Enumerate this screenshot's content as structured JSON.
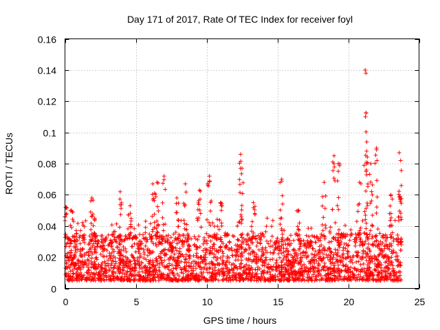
{
  "chart_data": {
    "type": "scatter",
    "title": "Day 171 of 2017, Rate Of TEC Index for receiver foyl",
    "xlabel": "GPS time / hours",
    "ylabel": "ROTI / TECUs",
    "xlim": [
      0,
      25
    ],
    "ylim": [
      0,
      0.16
    ],
    "xticks": [
      0,
      5,
      10,
      15,
      20,
      25
    ],
    "xtick_labels": [
      "0",
      "5",
      "10",
      "15",
      "20",
      "25"
    ],
    "yticks": [
      0,
      0.02,
      0.04,
      0.06,
      0.08,
      0.1,
      0.12,
      0.14,
      0.16
    ],
    "ytick_labels": [
      "0",
      "0.02",
      "0.04",
      "0.06",
      "0.08",
      "0.1",
      "0.12",
      "0.14",
      "0.16"
    ],
    "grid": true,
    "marker": "+",
    "color": "#ff0000",
    "time_range_hours": [
      0,
      23.75
    ],
    "typical_range": [
      0.005,
      0.035
    ],
    "series": [
      {
        "name": "ROTI",
        "peaks": [
          {
            "x": 0.05,
            "y": 0.052
          },
          {
            "x": 0.45,
            "y": 0.05
          },
          {
            "x": 1.9,
            "y": 0.058
          },
          {
            "x": 2.1,
            "y": 0.045
          },
          {
            "x": 3.9,
            "y": 0.062
          },
          {
            "x": 4.6,
            "y": 0.053
          },
          {
            "x": 6.2,
            "y": 0.067
          },
          {
            "x": 6.5,
            "y": 0.068
          },
          {
            "x": 7.0,
            "y": 0.072
          },
          {
            "x": 7.9,
            "y": 0.058
          },
          {
            "x": 8.5,
            "y": 0.067
          },
          {
            "x": 9.5,
            "y": 0.063
          },
          {
            "x": 10.2,
            "y": 0.072
          },
          {
            "x": 11.0,
            "y": 0.055
          },
          {
            "x": 12.4,
            "y": 0.086
          },
          {
            "x": 12.5,
            "y": 0.077
          },
          {
            "x": 13.3,
            "y": 0.055
          },
          {
            "x": 15.3,
            "y": 0.07
          },
          {
            "x": 16.5,
            "y": 0.05
          },
          {
            "x": 18.3,
            "y": 0.068
          },
          {
            "x": 19.0,
            "y": 0.085
          },
          {
            "x": 19.3,
            "y": 0.08
          },
          {
            "x": 20.8,
            "y": 0.068
          },
          {
            "x": 21.2,
            "y": 0.14
          },
          {
            "x": 21.25,
            "y": 0.138
          },
          {
            "x": 21.3,
            "y": 0.088
          },
          {
            "x": 21.6,
            "y": 0.08
          },
          {
            "x": 22.0,
            "y": 0.09
          },
          {
            "x": 23.0,
            "y": 0.06
          },
          {
            "x": 23.6,
            "y": 0.087
          },
          {
            "x": 23.7,
            "y": 0.082
          }
        ]
      }
    ]
  }
}
